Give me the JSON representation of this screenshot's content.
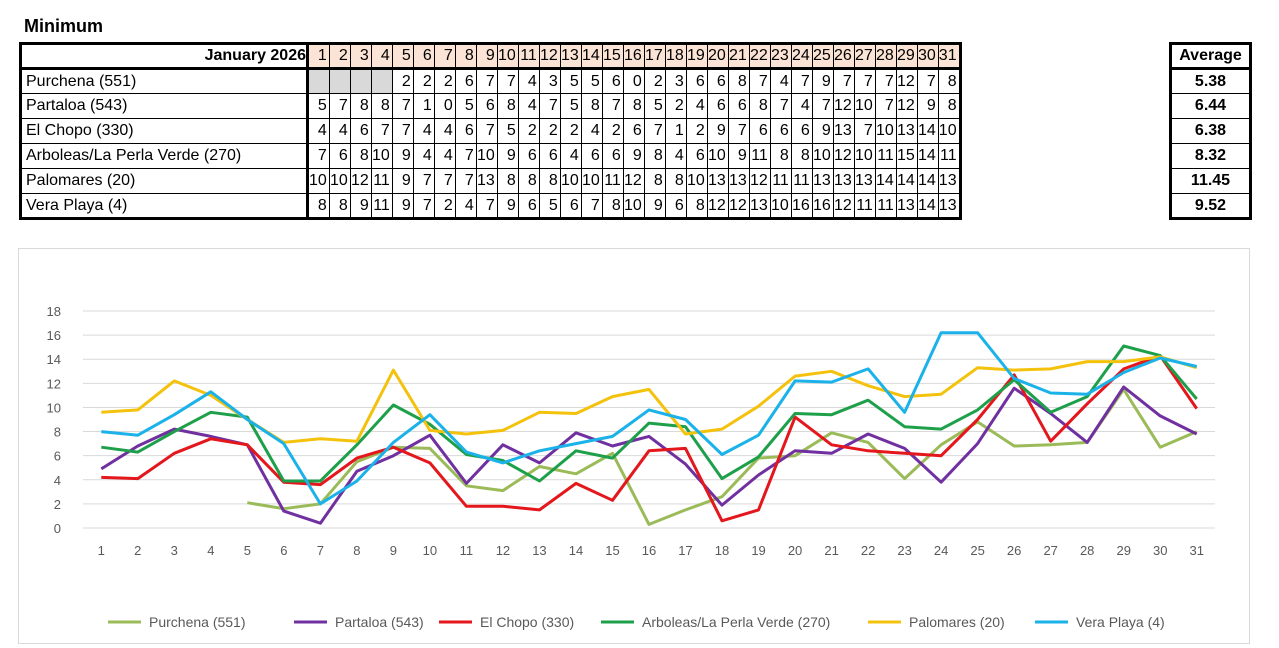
{
  "table": {
    "title": "Minimum",
    "header_label": "January 2026",
    "days": [
      "1",
      "2",
      "3",
      "4",
      "5",
      "6",
      "7",
      "8",
      "9",
      "10",
      "11",
      "12",
      "13",
      "14",
      "15",
      "16",
      "17",
      "18",
      "19",
      "20",
      "21",
      "22",
      "23",
      "24",
      "25",
      "26",
      "27",
      "28",
      "29",
      "30",
      "31"
    ],
    "average_header": "Average",
    "rows": [
      {
        "name": "Purchena (551)",
        "values": [
          "",
          "",
          "",
          "",
          "2",
          "2",
          "2",
          "6",
          "7",
          "7",
          "4",
          "3",
          "5",
          "5",
          "6",
          "0",
          "2",
          "3",
          "6",
          "6",
          "8",
          "7",
          "4",
          "7",
          "9",
          "7",
          "7",
          "7",
          "12",
          "7",
          "8"
        ],
        "average": "5.38"
      },
      {
        "name": "Partaloa (543)",
        "values": [
          "5",
          "7",
          "8",
          "8",
          "7",
          "1",
          "0",
          "5",
          "6",
          "8",
          "4",
          "7",
          "5",
          "8",
          "7",
          "8",
          "5",
          "2",
          "4",
          "6",
          "6",
          "8",
          "7",
          "4",
          "7",
          "12",
          "10",
          "7",
          "12",
          "9",
          "8"
        ],
        "average": "6.44"
      },
      {
        "name": "El Chopo (330)",
        "values": [
          "4",
          "4",
          "6",
          "7",
          "7",
          "4",
          "4",
          "6",
          "7",
          "5",
          "2",
          "2",
          "2",
          "4",
          "2",
          "6",
          "7",
          "1",
          "2",
          "9",
          "7",
          "6",
          "6",
          "6",
          "9",
          "13",
          "7",
          "10",
          "13",
          "14",
          "10"
        ],
        "average": "6.38"
      },
      {
        "name": "Arboleas/La Perla Verde (270)",
        "values": [
          "7",
          "6",
          "8",
          "10",
          "9",
          "4",
          "4",
          "7",
          "10",
          "9",
          "6",
          "6",
          "4",
          "6",
          "6",
          "9",
          "8",
          "4",
          "6",
          "10",
          "9",
          "11",
          "8",
          "8",
          "10",
          "12",
          "10",
          "11",
          "15",
          "14",
          "11"
        ],
        "average": "8.32"
      },
      {
        "name": "Palomares (20)",
        "values": [
          "10",
          "10",
          "12",
          "11",
          "9",
          "7",
          "7",
          "7",
          "13",
          "8",
          "8",
          "8",
          "10",
          "10",
          "11",
          "12",
          "8",
          "8",
          "10",
          "13",
          "13",
          "12",
          "11",
          "11",
          "13",
          "13",
          "13",
          "14",
          "14",
          "14",
          "13"
        ],
        "average": "11.45"
      },
      {
        "name": "Vera Playa (4)",
        "values": [
          "8",
          "8",
          "9",
          "11",
          "9",
          "7",
          "2",
          "4",
          "7",
          "9",
          "6",
          "5",
          "6",
          "7",
          "8",
          "10",
          "9",
          "6",
          "8",
          "12",
          "12",
          "13",
          "10",
          "16",
          "16",
          "12",
          "11",
          "11",
          "13",
          "14",
          "13"
        ],
        "average": "9.52"
      }
    ]
  },
  "chart_data": {
    "type": "line",
    "title": "",
    "xlabel": "",
    "ylabel": "",
    "x": [
      1,
      2,
      3,
      4,
      5,
      6,
      7,
      8,
      9,
      10,
      11,
      12,
      13,
      14,
      15,
      16,
      17,
      18,
      19,
      20,
      21,
      22,
      23,
      24,
      25,
      26,
      27,
      28,
      29,
      30,
      31
    ],
    "ylim": [
      0,
      18
    ],
    "yticks": [
      0,
      2,
      4,
      6,
      8,
      10,
      12,
      14,
      16,
      18
    ],
    "grid": true,
    "legend_position": "bottom",
    "series": [
      {
        "name": "Purchena (551)",
        "color": "#9bbb59",
        "values": [
          null,
          null,
          null,
          null,
          2.1,
          1.6,
          2.0,
          5.5,
          6.7,
          6.6,
          3.5,
          3.1,
          5.1,
          4.5,
          6.2,
          0.3,
          1.5,
          2.6,
          5.8,
          6.0,
          7.9,
          7.1,
          4.1,
          6.9,
          8.8,
          6.8,
          6.9,
          7.1,
          11.5,
          6.7,
          8.0
        ]
      },
      {
        "name": "Partaloa (543)",
        "color": "#7030a0",
        "values": [
          4.9,
          6.8,
          8.2,
          7.6,
          6.9,
          1.4,
          0.4,
          4.7,
          6.0,
          7.7,
          3.7,
          6.9,
          5.4,
          7.9,
          6.8,
          7.6,
          5.3,
          1.9,
          4.4,
          6.4,
          6.2,
          7.8,
          6.6,
          3.8,
          7.0,
          11.6,
          9.5,
          7.1,
          11.7,
          9.3,
          7.8
        ]
      },
      {
        "name": "El Chopo (330)",
        "color": "#e3171c",
        "values": [
          4.2,
          4.1,
          6.2,
          7.4,
          6.9,
          3.8,
          3.6,
          5.8,
          6.7,
          5.4,
          1.8,
          1.8,
          1.5,
          3.7,
          2.3,
          6.4,
          6.6,
          0.6,
          1.5,
          9.2,
          6.9,
          6.4,
          6.2,
          6.0,
          9.0,
          12.7,
          7.2,
          10.3,
          13.2,
          14.3,
          9.9
        ]
      },
      {
        "name": "Arboleas/La Perla Verde (270)",
        "color": "#1ea04b",
        "values": [
          6.7,
          6.3,
          8.0,
          9.6,
          9.2,
          3.9,
          3.9,
          6.9,
          10.2,
          8.6,
          6.1,
          5.6,
          3.9,
          6.4,
          5.8,
          8.7,
          8.4,
          4.1,
          5.9,
          9.5,
          9.4,
          10.6,
          8.4,
          8.2,
          9.8,
          12.3,
          9.6,
          10.9,
          15.1,
          14.3,
          10.7
        ]
      },
      {
        "name": "Palomares (20)",
        "color": "#f4c20d",
        "values": [
          9.6,
          9.8,
          12.2,
          11.0,
          9.0,
          7.1,
          7.4,
          7.2,
          13.1,
          8.1,
          7.8,
          8.1,
          9.6,
          9.5,
          10.9,
          11.5,
          7.8,
          8.2,
          10.1,
          12.6,
          13.0,
          11.8,
          10.9,
          11.1,
          13.3,
          13.1,
          13.2,
          13.8,
          13.8,
          14.2,
          13.3
        ]
      },
      {
        "name": "Vera Playa (4)",
        "color": "#1ab2e8",
        "values": [
          8.0,
          7.7,
          9.4,
          11.3,
          9.0,
          7.0,
          2.0,
          3.9,
          7.1,
          9.4,
          6.3,
          5.4,
          6.4,
          7.0,
          7.6,
          9.8,
          9.0,
          6.1,
          7.7,
          12.2,
          12.1,
          13.2,
          9.6,
          16.2,
          16.2,
          12.4,
          11.2,
          11.1,
          12.9,
          14.1,
          13.4
        ]
      }
    ]
  }
}
